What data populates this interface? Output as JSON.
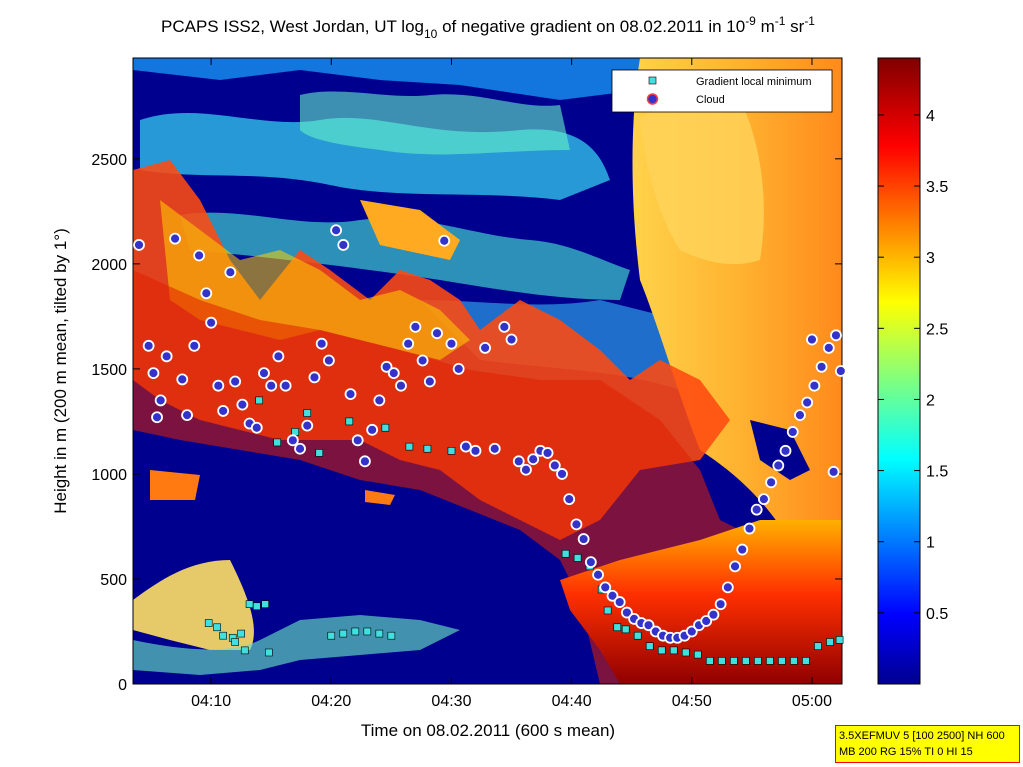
{
  "chart_data": {
    "type": "heatmap",
    "title": {
      "main": "PCAPS ISS2, West Jordan, UT log",
      "log_base": "10",
      "rest": " of negative gradient on 08.02.2011 in 10",
      "exp1": "-9",
      "unit1": " m",
      "exp2": "-1",
      "unit2": " sr",
      "exp3": "-1"
    },
    "xlabel": "Time on 08.02.2011 (600 s mean)",
    "ylabel": "Height in m (200 m mean, tilted by 1°)",
    "x_ticks": [
      "04:10",
      "04:20",
      "04:30",
      "04:40",
      "04:50",
      "05:00"
    ],
    "x_range_minutes": [
      3.5,
      62.5
    ],
    "y_ticks": [
      0,
      500,
      1000,
      1500,
      2000,
      2500
    ],
    "ylim": [
      0,
      2980
    ],
    "colorbar": {
      "ticks": [
        0.5,
        1,
        1.5,
        2,
        2.5,
        3,
        3.5,
        4
      ],
      "range": [
        0,
        4.4
      ],
      "colormap": "jet"
    },
    "legend": {
      "placement": "top-right",
      "entries": [
        {
          "label": "Gradient local minimum",
          "marker": "square",
          "color": "#40e0e0"
        },
        {
          "label": "Cloud",
          "marker": "circle",
          "color": "#3333cc"
        }
      ]
    },
    "gradient_local_minimum_series": {
      "name": "Gradient local minimum",
      "points": [
        [
          9.8,
          290
        ],
        [
          10.5,
          270
        ],
        [
          11.0,
          230
        ],
        [
          11.8,
          220
        ],
        [
          12.5,
          240
        ],
        [
          13.2,
          380
        ],
        [
          13.8,
          370
        ],
        [
          14.5,
          380
        ],
        [
          12.0,
          200
        ],
        [
          12.8,
          160
        ],
        [
          14.8,
          150
        ],
        [
          20.0,
          230
        ],
        [
          21.0,
          240
        ],
        [
          22.0,
          250
        ],
        [
          23.0,
          250
        ],
        [
          24.0,
          240
        ],
        [
          25.0,
          230
        ],
        [
          14.0,
          1350
        ],
        [
          15.5,
          1150
        ],
        [
          17.0,
          1200
        ],
        [
          18.0,
          1290
        ],
        [
          19.0,
          1100
        ],
        [
          21.5,
          1250
        ],
        [
          24.5,
          1220
        ],
        [
          26.5,
          1130
        ],
        [
          28.0,
          1120
        ],
        [
          30.0,
          1110
        ],
        [
          39.5,
          620
        ],
        [
          40.5,
          600
        ],
        [
          41.5,
          560
        ],
        [
          42.5,
          450
        ],
        [
          43.0,
          350
        ],
        [
          43.8,
          270
        ],
        [
          44.5,
          260
        ],
        [
          45.5,
          230
        ],
        [
          46.5,
          180
        ],
        [
          47.5,
          160
        ],
        [
          48.5,
          160
        ],
        [
          49.5,
          150
        ],
        [
          50.5,
          140
        ],
        [
          51.5,
          110
        ],
        [
          52.5,
          110
        ],
        [
          53.5,
          110
        ],
        [
          54.5,
          110
        ],
        [
          55.5,
          110
        ],
        [
          56.5,
          110
        ],
        [
          57.5,
          110
        ],
        [
          58.5,
          110
        ],
        [
          59.5,
          110
        ],
        [
          60.5,
          180
        ],
        [
          61.5,
          200
        ],
        [
          62.3,
          210
        ]
      ]
    },
    "cloud_series": {
      "name": "Cloud",
      "points": [
        [
          4.0,
          2090
        ],
        [
          4.8,
          1610
        ],
        [
          5.2,
          1480
        ],
        [
          5.8,
          1350
        ],
        [
          5.5,
          1270
        ],
        [
          6.3,
          1560
        ],
        [
          7.0,
          2120
        ],
        [
          7.6,
          1450
        ],
        [
          8.0,
          1280
        ],
        [
          8.6,
          1610
        ],
        [
          9.0,
          2040
        ],
        [
          9.6,
          1860
        ],
        [
          10.0,
          1720
        ],
        [
          10.6,
          1420
        ],
        [
          11.0,
          1300
        ],
        [
          11.6,
          1960
        ],
        [
          12.0,
          1440
        ],
        [
          12.6,
          1330
        ],
        [
          13.2,
          1240
        ],
        [
          13.8,
          1220
        ],
        [
          14.4,
          1480
        ],
        [
          15.0,
          1420
        ],
        [
          15.6,
          1560
        ],
        [
          16.2,
          1420
        ],
        [
          16.8,
          1160
        ],
        [
          17.4,
          1120
        ],
        [
          18.0,
          1230
        ],
        [
          18.6,
          1460
        ],
        [
          19.2,
          1620
        ],
        [
          19.8,
          1540
        ],
        [
          20.4,
          2160
        ],
        [
          21.0,
          2090
        ],
        [
          21.6,
          1380
        ],
        [
          22.2,
          1160
        ],
        [
          22.8,
          1060
        ],
        [
          23.4,
          1210
        ],
        [
          24.0,
          1350
        ],
        [
          24.6,
          1510
        ],
        [
          25.2,
          1480
        ],
        [
          25.8,
          1420
        ],
        [
          26.4,
          1620
        ],
        [
          27.0,
          1700
        ],
        [
          27.6,
          1540
        ],
        [
          28.2,
          1440
        ],
        [
          28.8,
          1670
        ],
        [
          29.4,
          2110
        ],
        [
          30.0,
          1620
        ],
        [
          30.6,
          1500
        ],
        [
          31.2,
          1130
        ],
        [
          32.0,
          1110
        ],
        [
          32.8,
          1600
        ],
        [
          33.6,
          1120
        ],
        [
          34.4,
          1700
        ],
        [
          35.0,
          1640
        ],
        [
          35.6,
          1060
        ],
        [
          36.2,
          1020
        ],
        [
          36.8,
          1070
        ],
        [
          37.4,
          1110
        ],
        [
          38.0,
          1100
        ],
        [
          38.6,
          1040
        ],
        [
          39.2,
          1000
        ],
        [
          39.8,
          880
        ],
        [
          40.4,
          760
        ],
        [
          41.0,
          690
        ],
        [
          41.6,
          580
        ],
        [
          42.2,
          520
        ],
        [
          42.8,
          460
        ],
        [
          43.4,
          420
        ],
        [
          44.0,
          390
        ],
        [
          44.6,
          340
        ],
        [
          45.2,
          310
        ],
        [
          45.8,
          290
        ],
        [
          46.4,
          280
        ],
        [
          47.0,
          250
        ],
        [
          47.6,
          230
        ],
        [
          48.2,
          220
        ],
        [
          48.8,
          220
        ],
        [
          49.4,
          230
        ],
        [
          50.0,
          250
        ],
        [
          50.6,
          280
        ],
        [
          51.2,
          300
        ],
        [
          51.8,
          330
        ],
        [
          52.4,
          380
        ],
        [
          53.0,
          460
        ],
        [
          53.6,
          560
        ],
        [
          54.2,
          640
        ],
        [
          54.8,
          740
        ],
        [
          55.4,
          830
        ],
        [
          56.0,
          880
        ],
        [
          56.6,
          960
        ],
        [
          57.2,
          1040
        ],
        [
          57.8,
          1110
        ],
        [
          58.4,
          1200
        ],
        [
          59.0,
          1280
        ],
        [
          59.6,
          1340
        ],
        [
          60.2,
          1420
        ],
        [
          60.8,
          1510
        ],
        [
          61.4,
          1600
        ],
        [
          62.0,
          1660
        ],
        [
          62.4,
          1490
        ],
        [
          61.8,
          1010
        ],
        [
          60.0,
          1640
        ]
      ]
    }
  },
  "info_box": {
    "line1": "3.5XEFMUV 5 [100 2500] NH 600",
    "line2": "MB 200 RG 15% TI 0 HI 15"
  }
}
